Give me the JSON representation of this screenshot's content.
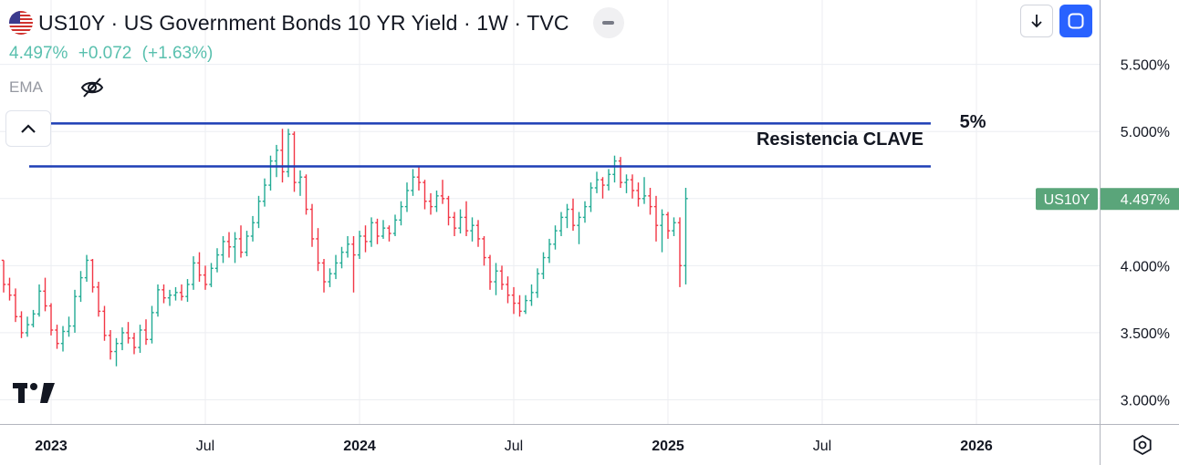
{
  "header": {
    "title": "US10Y · US Government Bonds 10 YR Yield · 1W · TVC",
    "flag_icon": "us-flag-icon"
  },
  "quote": {
    "last": "4.497%",
    "change": "+0.072",
    "change_pct": "(+1.63%)"
  },
  "indicator": {
    "label": "EMA",
    "visibility_icon": "eye-off-icon"
  },
  "toolbar": {
    "collapse_icon": "chevron-up-icon",
    "download_icon": "arrow-down-icon",
    "mode_icon": "square-rounded-icon",
    "settings_icon": "gear-icon"
  },
  "chart_data": {
    "type": "ohlc",
    "series_name": "US10Y",
    "timeframe": "1W",
    "y_axis_side": "right",
    "y_ticks": [
      "3.000%",
      "3.500%",
      "4.000%",
      "4.500%",
      "5.000%",
      "5.500%"
    ],
    "y_tick_values": [
      3.0,
      3.5,
      4.0,
      4.5,
      5.0,
      5.5
    ],
    "ylim": [
      2.82,
      5.98
    ],
    "x_ticks": [
      {
        "label": "2023",
        "week": 0,
        "bold": true
      },
      {
        "label": "Jul",
        "week": 26,
        "bold": false
      },
      {
        "label": "2024",
        "week": 52,
        "bold": true
      },
      {
        "label": "Jul",
        "week": 78,
        "bold": false
      },
      {
        "label": "2025",
        "week": 104,
        "bold": true
      },
      {
        "label": "Jul",
        "week": 130,
        "bold": false
      },
      {
        "label": "2026",
        "week": 156,
        "bold": true
      }
    ],
    "last_price_label": {
      "name": "US10Y",
      "value": "4.497%",
      "y": 4.497
    },
    "colors": {
      "up": "#22ab94",
      "down": "#f23645",
      "line": "#1e3fb5",
      "label_bg": "#5aa57a"
    },
    "annotations": {
      "lines": [
        {
          "y": 5.06,
          "from_week": -5.3,
          "to_week": 148.3
        },
        {
          "y": 4.74,
          "from_week": -3.7,
          "to_week": 148.3
        }
      ],
      "texts": [
        {
          "text": "5%",
          "week": 155.4,
          "y": 5.03
        },
        {
          "text": "Resistencia CLAVE",
          "week": 133,
          "y": 4.9
        }
      ]
    },
    "bars": [
      [
        4.04,
        4.04,
        3.8,
        3.86
      ],
      [
        3.86,
        3.91,
        3.74,
        3.78
      ],
      [
        3.78,
        3.83,
        3.58,
        3.62
      ],
      [
        3.62,
        3.66,
        3.46,
        3.5
      ],
      [
        3.5,
        3.62,
        3.47,
        3.56
      ],
      [
        3.56,
        3.67,
        3.54,
        3.64
      ],
      [
        3.64,
        3.86,
        3.62,
        3.81
      ],
      [
        3.81,
        3.91,
        3.66,
        3.7
      ],
      [
        3.7,
        3.72,
        3.48,
        3.52
      ],
      [
        3.52,
        3.56,
        3.38,
        3.42
      ],
      [
        3.42,
        3.55,
        3.36,
        3.51
      ],
      [
        3.51,
        3.62,
        3.47,
        3.55
      ],
      [
        3.55,
        3.82,
        3.5,
        3.77
      ],
      [
        3.77,
        3.96,
        3.73,
        3.91
      ],
      [
        3.91,
        4.08,
        3.88,
        4.04
      ],
      [
        4.04,
        4.05,
        3.8,
        3.84
      ],
      [
        3.84,
        3.88,
        3.62,
        3.66
      ],
      [
        3.66,
        3.7,
        3.44,
        3.48
      ],
      [
        3.48,
        3.52,
        3.3,
        3.36
      ],
      [
        3.36,
        3.46,
        3.25,
        3.42
      ],
      [
        3.42,
        3.54,
        3.37,
        3.5
      ],
      [
        3.5,
        3.58,
        3.42,
        3.46
      ],
      [
        3.46,
        3.5,
        3.34,
        3.39
      ],
      [
        3.39,
        3.56,
        3.35,
        3.52
      ],
      [
        3.52,
        3.6,
        3.41,
        3.45
      ],
      [
        3.45,
        3.7,
        3.42,
        3.65
      ],
      [
        3.65,
        3.86,
        3.62,
        3.82
      ],
      [
        3.82,
        3.86,
        3.72,
        3.76
      ],
      [
        3.76,
        3.82,
        3.7,
        3.78
      ],
      [
        3.78,
        3.84,
        3.74,
        3.8
      ],
      [
        3.8,
        3.86,
        3.74,
        3.77
      ],
      [
        3.77,
        3.9,
        3.73,
        3.86
      ],
      [
        3.86,
        4.07,
        3.82,
        4.02
      ],
      [
        4.02,
        4.1,
        3.88,
        3.93
      ],
      [
        3.93,
        4.0,
        3.82,
        3.86
      ],
      [
        3.86,
        4.02,
        3.84,
        3.98
      ],
      [
        3.98,
        4.13,
        3.95,
        4.08
      ],
      [
        4.08,
        4.22,
        4.02,
        4.18
      ],
      [
        4.18,
        4.25,
        4.06,
        4.14
      ],
      [
        4.14,
        4.25,
        4.02,
        4.2
      ],
      [
        4.2,
        4.3,
        4.06,
        4.1
      ],
      [
        4.1,
        4.26,
        4.07,
        4.22
      ],
      [
        4.22,
        4.37,
        4.18,
        4.32
      ],
      [
        4.32,
        4.52,
        4.28,
        4.48
      ],
      [
        4.48,
        4.65,
        4.44,
        4.6
      ],
      [
        4.6,
        4.82,
        4.56,
        4.78
      ],
      [
        4.78,
        4.9,
        4.66,
        4.86
      ],
      [
        4.86,
        5.02,
        4.62,
        4.7
      ],
      [
        4.7,
        5.02,
        4.66,
        4.98
      ],
      [
        4.98,
        5.0,
        4.55,
        4.62
      ],
      [
        4.62,
        4.71,
        4.52,
        4.66
      ],
      [
        4.66,
        4.68,
        4.38,
        4.42
      ],
      [
        4.42,
        4.46,
        4.14,
        4.2
      ],
      [
        4.2,
        4.28,
        3.96,
        4.02
      ],
      [
        4.02,
        4.05,
        3.8,
        3.88
      ],
      [
        3.88,
        3.98,
        3.84,
        3.94
      ],
      [
        3.94,
        4.08,
        3.9,
        4.02
      ],
      [
        4.02,
        4.14,
        3.98,
        4.1
      ],
      [
        4.1,
        4.22,
        4.06,
        4.16
      ],
      [
        4.16,
        4.22,
        3.8,
        4.08
      ],
      [
        4.08,
        4.26,
        4.05,
        4.22
      ],
      [
        4.22,
        4.3,
        4.1,
        4.18
      ],
      [
        4.18,
        4.36,
        4.14,
        4.32
      ],
      [
        4.32,
        4.35,
        4.16,
        4.22
      ],
      [
        4.22,
        4.34,
        4.2,
        4.28
      ],
      [
        4.28,
        4.3,
        4.18,
        4.24
      ],
      [
        4.24,
        4.38,
        4.22,
        4.34
      ],
      [
        4.34,
        4.48,
        4.3,
        4.44
      ],
      [
        4.44,
        4.62,
        4.4,
        4.56
      ],
      [
        4.56,
        4.72,
        4.52,
        4.66
      ],
      [
        4.66,
        4.74,
        4.56,
        4.62
      ],
      [
        4.62,
        4.64,
        4.42,
        4.48
      ],
      [
        4.48,
        4.54,
        4.38,
        4.44
      ],
      [
        4.44,
        4.56,
        4.4,
        4.52
      ],
      [
        4.52,
        4.64,
        4.46,
        4.5
      ],
      [
        4.5,
        4.52,
        4.3,
        4.36
      ],
      [
        4.36,
        4.4,
        4.22,
        4.28
      ],
      [
        4.28,
        4.42,
        4.24,
        4.36
      ],
      [
        4.36,
        4.48,
        4.22,
        4.26
      ],
      [
        4.26,
        4.36,
        4.18,
        4.3
      ],
      [
        4.3,
        4.34,
        4.14,
        4.2
      ],
      [
        4.2,
        4.22,
        4.0,
        4.06
      ],
      [
        4.06,
        4.08,
        3.82,
        3.88
      ],
      [
        3.88,
        4.02,
        3.78,
        3.96
      ],
      [
        3.96,
        4.0,
        3.82,
        3.86
      ],
      [
        3.86,
        3.92,
        3.72,
        3.78
      ],
      [
        3.78,
        3.84,
        3.64,
        3.72
      ],
      [
        3.72,
        3.78,
        3.62,
        3.66
      ],
      [
        3.66,
        3.78,
        3.64,
        3.74
      ],
      [
        3.74,
        3.86,
        3.7,
        3.8
      ],
      [
        3.8,
        3.98,
        3.76,
        3.94
      ],
      [
        3.94,
        4.1,
        3.9,
        4.06
      ],
      [
        4.06,
        4.2,
        4.02,
        4.16
      ],
      [
        4.16,
        4.3,
        4.12,
        4.26
      ],
      [
        4.26,
        4.4,
        4.22,
        4.36
      ],
      [
        4.36,
        4.46,
        4.28,
        4.42
      ],
      [
        4.42,
        4.5,
        4.26,
        4.3
      ],
      [
        4.3,
        4.4,
        4.16,
        4.36
      ],
      [
        4.36,
        4.48,
        4.32,
        4.44
      ],
      [
        4.44,
        4.62,
        4.4,
        4.58
      ],
      [
        4.58,
        4.7,
        4.54,
        4.64
      ],
      [
        4.64,
        4.66,
        4.5,
        4.6
      ],
      [
        4.6,
        4.72,
        4.56,
        4.68
      ],
      [
        4.68,
        4.82,
        4.62,
        4.78
      ],
      [
        4.78,
        4.81,
        4.58,
        4.62
      ],
      [
        4.62,
        4.68,
        4.54,
        4.64
      ],
      [
        4.64,
        4.68,
        4.5,
        4.56
      ],
      [
        4.56,
        4.62,
        4.44,
        4.5
      ],
      [
        4.5,
        4.66,
        4.46,
        4.52
      ],
      [
        4.52,
        4.58,
        4.38,
        4.44
      ],
      [
        4.44,
        4.52,
        4.18,
        4.3
      ],
      [
        4.3,
        4.42,
        4.1,
        4.38
      ],
      [
        4.38,
        4.4,
        4.2,
        4.26
      ],
      [
        4.26,
        4.36,
        4.22,
        4.32
      ],
      [
        4.32,
        4.36,
        3.84,
        4.0
      ],
      [
        4.0,
        4.58,
        3.86,
        4.5
      ]
    ]
  }
}
